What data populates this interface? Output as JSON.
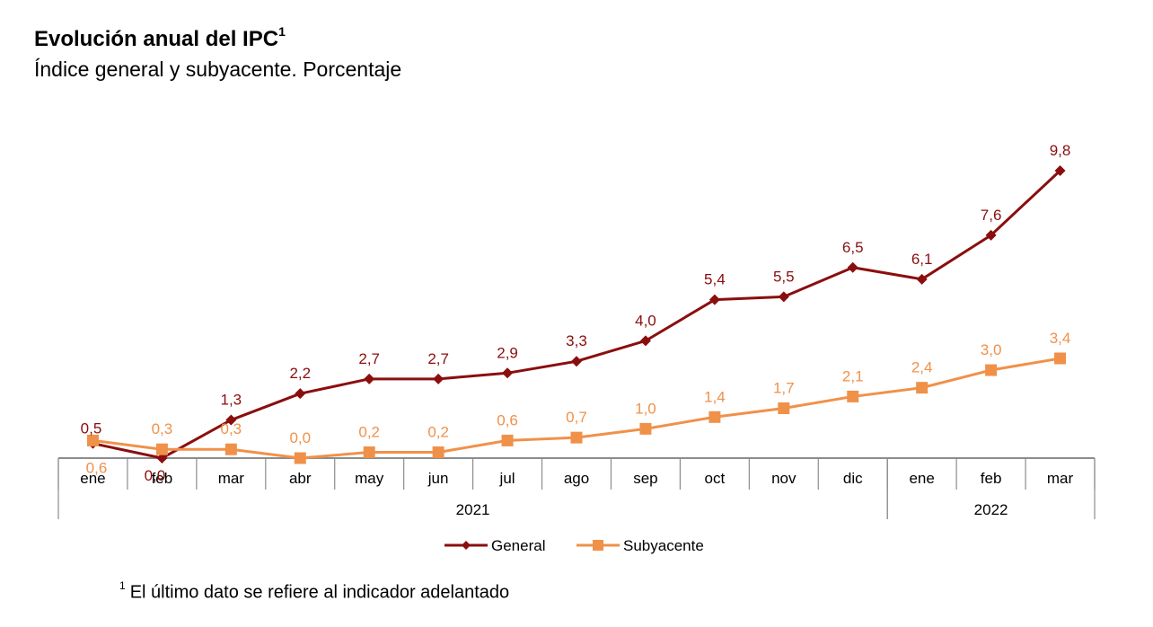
{
  "header": {
    "title": "Evolución anual del IPC",
    "title_superscript": "1",
    "subtitle": "Índice general y subyacente. Porcentaje"
  },
  "footnote": {
    "marker": "1",
    "text": "El último dato se refiere al indicador adelantado"
  },
  "chart_data": {
    "type": "line",
    "title": "Evolución anual del IPC",
    "subtitle": "Índice general y subyacente. Porcentaje",
    "xlabel": "",
    "ylabel": "",
    "ylim": [
      0,
      10
    ],
    "grid": false,
    "legend": "bottom",
    "categories": [
      "ene",
      "feb",
      "mar",
      "abr",
      "may",
      "jun",
      "jul",
      "ago",
      "sep",
      "oct",
      "nov",
      "dic",
      "ene",
      "feb",
      "mar"
    ],
    "year_groups": [
      {
        "label": "2021",
        "start": 0,
        "end": 11
      },
      {
        "label": "2022",
        "start": 12,
        "end": 14
      }
    ],
    "series": [
      {
        "name": "General",
        "color": "#8B0E0E",
        "marker": "diamond",
        "values": [
          0.5,
          0.0,
          1.3,
          2.2,
          2.7,
          2.7,
          2.9,
          3.3,
          4.0,
          5.4,
          5.5,
          6.5,
          6.1,
          7.6,
          9.8
        ],
        "labels": [
          "0,5",
          "0,0",
          "1,3",
          "2,2",
          "2,7",
          "2,7",
          "2,9",
          "3,3",
          "4,0",
          "5,4",
          "5,5",
          "6,5",
          "6,1",
          "7,6",
          "9,8"
        ]
      },
      {
        "name": "Subyacente",
        "color": "#F0914A",
        "marker": "square",
        "values": [
          0.6,
          0.3,
          0.3,
          0.0,
          0.2,
          0.2,
          0.6,
          0.7,
          1.0,
          1.4,
          1.7,
          2.1,
          2.4,
          3.0,
          3.4
        ],
        "labels": [
          "0,6",
          "0,3",
          "0,3",
          "0,0",
          "0,2",
          "0,2",
          "0,6",
          "0,7",
          "1,0",
          "1,4",
          "1,7",
          "2,1",
          "2,4",
          "3,0",
          "3,4"
        ]
      }
    ]
  }
}
